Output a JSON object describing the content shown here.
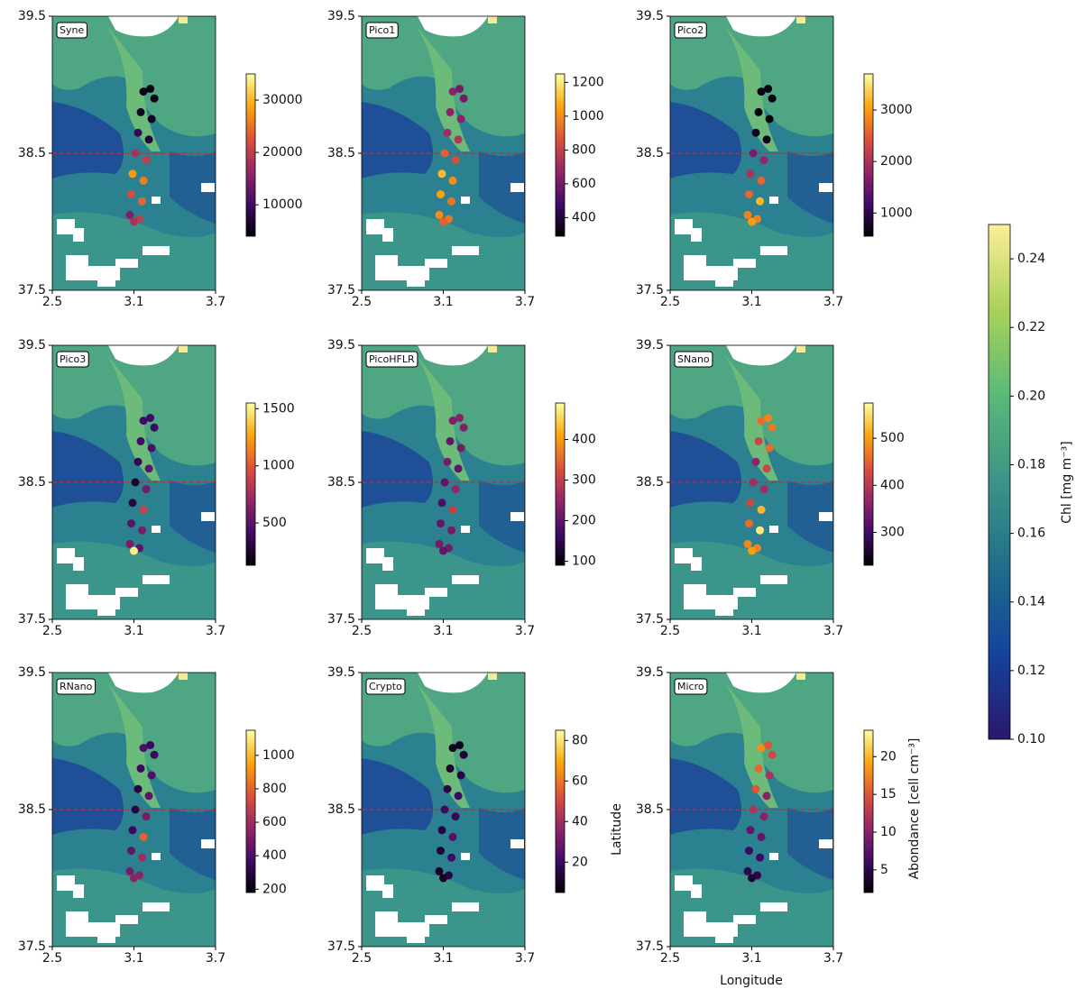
{
  "chart_data": {
    "type": "map-scatter",
    "xlabel": "Longitude",
    "ylabel": "Latitude",
    "xlim": [
      2.5,
      3.7
    ],
    "xticks": [
      2.5,
      3.1,
      3.7
    ],
    "ylim": [
      37.5,
      39.5
    ],
    "yticks": [
      37.5,
      38.5,
      39.5
    ],
    "hline": 38.5,
    "hline_color": "#d62728",
    "track": {
      "lon": [
        3.07,
        3.08,
        3.09,
        3.11,
        3.13,
        3.15,
        3.17,
        3.22,
        3.25,
        3.23,
        3.21,
        3.19,
        3.17,
        3.16,
        3.14,
        3.1
      ],
      "lat": [
        38.05,
        38.2,
        38.35,
        38.5,
        38.65,
        38.8,
        38.95,
        38.97,
        38.9,
        38.75,
        38.6,
        38.45,
        38.3,
        38.15,
        38.02,
        38.0
      ]
    },
    "point_cmap": [
      "#000004",
      "#420a68",
      "#932667",
      "#dd513a",
      "#fca50a",
      "#fcffa4"
    ],
    "colorbar_label": "Abondance [cell cm⁻³]",
    "panels": [
      {
        "label": "Syne",
        "clim": [
          4000,
          35000
        ],
        "cticks": [
          10000,
          20000,
          30000
        ],
        "values": [
          15000,
          22000,
          28000,
          18000,
          9000,
          6000,
          5000,
          5000,
          5000,
          6000,
          7000,
          20000,
          26000,
          24000,
          20000,
          18000
        ]
      },
      {
        "label": "Pico1",
        "clim": [
          290,
          1250
        ],
        "cticks": [
          400,
          600,
          800,
          1000,
          1200
        ],
        "values": [
          1000,
          1050,
          1100,
          900,
          700,
          650,
          650,
          600,
          600,
          650,
          750,
          850,
          1000,
          950,
          950,
          900
        ]
      },
      {
        "label": "Pico2",
        "clim": [
          550,
          3700
        ],
        "cticks": [
          1000,
          2000,
          3000
        ],
        "values": [
          2800,
          2600,
          2000,
          1600,
          700,
          600,
          600,
          600,
          600,
          600,
          700,
          1800,
          2600,
          3200,
          2800,
          3000
        ]
      },
      {
        "label": "Pico3",
        "clim": [
          130,
          1550
        ],
        "cticks": [
          500,
          1000,
          1500
        ],
        "values": [
          600,
          500,
          300,
          250,
          350,
          400,
          400,
          400,
          400,
          450,
          500,
          600,
          900,
          600,
          500,
          1500
        ]
      },
      {
        "label": "PicoHFLR",
        "clim": [
          90,
          490
        ],
        "cticks": [
          100,
          200,
          300,
          400
        ],
        "values": [
          220,
          200,
          180,
          200,
          220,
          200,
          230,
          240,
          230,
          220,
          200,
          250,
          300,
          220,
          220,
          200
        ]
      },
      {
        "label": "SNano",
        "clim": [
          230,
          575
        ],
        "cticks": [
          300,
          400,
          500
        ],
        "values": [
          480,
          460,
          420,
          380,
          360,
          420,
          460,
          480,
          470,
          460,
          420,
          380,
          520,
          560,
          480,
          500
        ]
      },
      {
        "label": "RNano",
        "clim": [
          180,
          1150
        ],
        "cticks": [
          200,
          400,
          600,
          800,
          1000
        ],
        "values": [
          500,
          450,
          350,
          300,
          300,
          350,
          400,
          350,
          350,
          400,
          450,
          500,
          800,
          600,
          550,
          550
        ]
      },
      {
        "label": "Crypto",
        "clim": [
          5,
          85
        ],
        "cticks": [
          20,
          40,
          60,
          80
        ],
        "values": [
          10,
          12,
          15,
          20,
          15,
          12,
          10,
          10,
          12,
          15,
          20,
          18,
          25,
          20,
          15,
          10
        ]
      },
      {
        "label": "Micro",
        "clim": [
          2,
          23.5
        ],
        "cticks": [
          5,
          10,
          15,
          20
        ],
        "values": [
          5,
          6,
          8,
          12,
          15,
          16,
          18,
          15,
          14,
          12,
          10,
          10,
          8,
          6,
          5,
          4
        ]
      }
    ],
    "field_colorbar": {
      "label": "Chl [mg m⁻³]",
      "clim": [
        0.1,
        0.25
      ],
      "cticks": [
        {
          "value": 0.1,
          "label": "0.10"
        },
        0.12,
        0.14,
        0.16,
        0.18,
        {
          "value": 0.2,
          "label": "0.20"
        },
        0.22,
        0.24
      ],
      "cmap": [
        "#2a186c",
        "#14439c",
        "#206e8b",
        "#3d9387",
        "#5ab978",
        "#a9d15a",
        "#fdee99"
      ]
    }
  }
}
